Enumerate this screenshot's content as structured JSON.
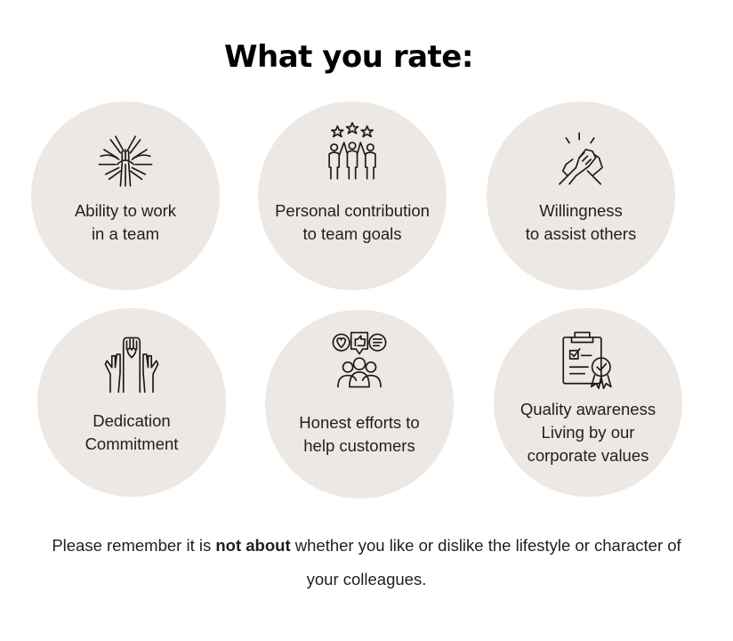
{
  "title": "What you rate:",
  "items": [
    {
      "icon": "hands-together-icon",
      "line1": "Ability to work",
      "line2": "in a team",
      "line3": ""
    },
    {
      "icon": "team-stars-icon",
      "line1": "Personal contribution",
      "line2": "to team goals",
      "line3": ""
    },
    {
      "icon": "handshake-icon",
      "line1": "Willingness",
      "line2": "to assist others",
      "line3": ""
    },
    {
      "icon": "raised-hands-icon",
      "line1": "Dedication",
      "line2": "Commitment",
      "line3": ""
    },
    {
      "icon": "customer-feedback-icon",
      "line1": "Honest efforts to",
      "line2": "help customers",
      "line3": ""
    },
    {
      "icon": "quality-certificate-icon",
      "line1": "Quality awareness",
      "line2": "Living by our",
      "line3": "corporate values"
    }
  ],
  "note": {
    "prefix": "Please remember it is ",
    "emphasis": "not about",
    "suffix": " whether you like or dislike the lifestyle or character of",
    "line2": "your colleagues."
  }
}
